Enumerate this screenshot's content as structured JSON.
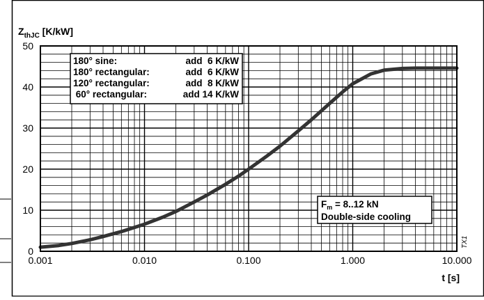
{
  "chart_data": {
    "type": "line",
    "ylabel_main": "Z",
    "ylabel_sub": "thJC",
    "ylabel_unit": " [K/kW]",
    "xlabel": "t [s]",
    "x_scale": "log",
    "xlim": [
      0.001,
      10
    ],
    "ylim": [
      0,
      50
    ],
    "grid": true,
    "x_ticks": [
      0.001,
      0.01,
      0.1,
      1,
      10
    ],
    "x_tick_labels": [
      "0.001",
      "0.010",
      "0.100",
      "1.000",
      "10.000"
    ],
    "y_ticks": [
      0,
      10,
      20,
      30,
      40,
      50
    ],
    "y_tick_labels": [
      "0",
      "10",
      "20",
      "30",
      "40",
      "50"
    ],
    "series": [
      {
        "x": [
          0.001,
          0.0015,
          0.002,
          0.003,
          0.004,
          0.006,
          0.008,
          0.01,
          0.015,
          0.02,
          0.03,
          0.04,
          0.06,
          0.08,
          0.1,
          0.15,
          0.2,
          0.3,
          0.4,
          0.6,
          0.8,
          1.0,
          1.5,
          2.0,
          3.0,
          4.0,
          6.0,
          8.0,
          10.0
        ],
        "values": [
          1.0,
          1.4,
          1.9,
          2.8,
          3.6,
          4.8,
          5.8,
          6.6,
          8.3,
          9.7,
          12.0,
          13.7,
          16.3,
          18.3,
          20.0,
          23.2,
          25.6,
          29.3,
          32.0,
          36.0,
          38.8,
          40.8,
          43.2,
          44.1,
          44.5,
          44.6,
          44.6,
          44.6,
          44.6
        ]
      }
    ],
    "annotations": {
      "correction_table": [
        {
          "label": "180° sine:",
          "value": "add  6 K/kW"
        },
        {
          "label": "180° rectangular:",
          "value": "add  6 K/kW"
        },
        {
          "label": "120° rectangular:",
          "value": "add  8 K/kW"
        },
        {
          "label": " 60° rectangular:",
          "value": "add 14 K/kW"
        }
      ],
      "force_main": "F",
      "force_sub": "m",
      "force_value": " = 8..12 kN",
      "cooling": "Double-side cooling",
      "figure_code": "TX1"
    }
  },
  "colors": {
    "curve": "#333333",
    "grid": "#000000"
  }
}
